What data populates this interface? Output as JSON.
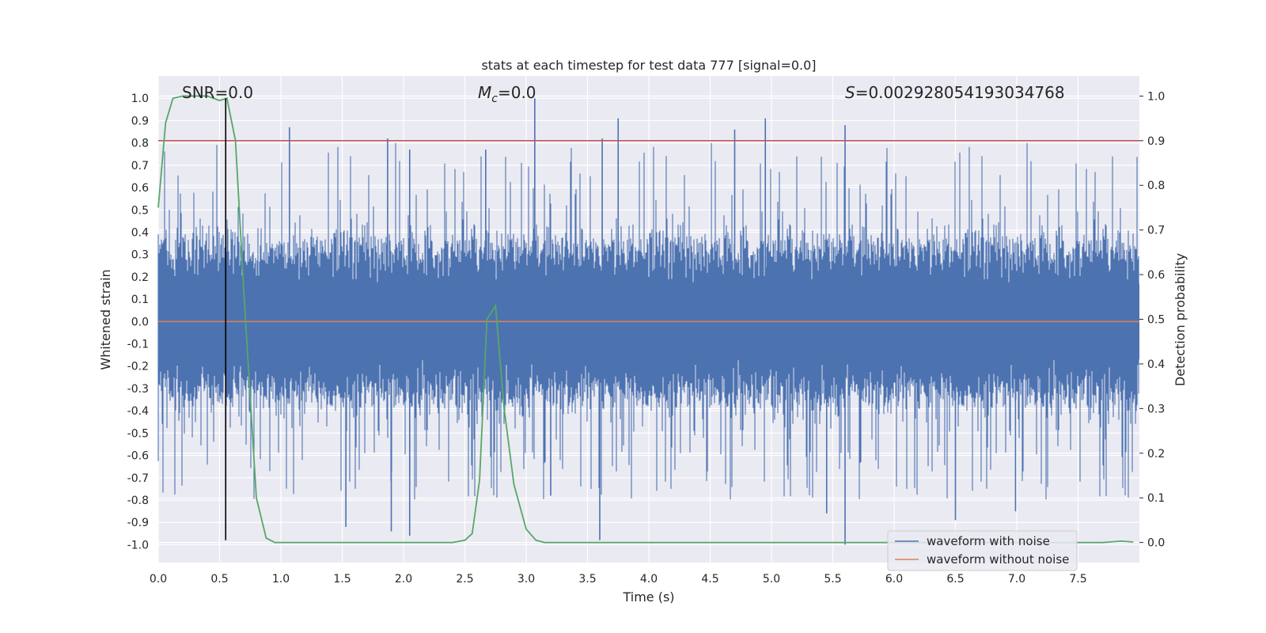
{
  "chart_data": {
    "type": "line",
    "title": "stats at each timestep for test data 777 [signal=0.0]",
    "xlabel": "Time (s)",
    "ylabel": "Whitened strain",
    "y2label": "Detection probability",
    "xlim": [
      0,
      8.0
    ],
    "ylim": [
      -1.08,
      1.1
    ],
    "y2lim": [
      -0.045,
      1.045
    ],
    "x_ticks": [
      "0.0",
      "0.5",
      "1.0",
      "1.5",
      "2.0",
      "2.5",
      "3.0",
      "3.5",
      "4.0",
      "4.5",
      "5.0",
      "5.5",
      "6.0",
      "6.5",
      "7.0",
      "7.5"
    ],
    "y_ticks": [
      "1.0",
      "0.9",
      "0.8",
      "0.7",
      "0.6",
      "0.5",
      "0.4",
      "0.3",
      "0.2",
      "0.1",
      "0.0",
      "-0.1",
      "-0.2",
      "-0.3",
      "-0.4",
      "-0.5",
      "-0.6",
      "-0.7",
      "-0.8",
      "-0.9",
      "-1.0"
    ],
    "y2_ticks": [
      "1.0",
      "0.9",
      "0.8",
      "0.7",
      "0.6",
      "0.5",
      "0.4",
      "0.3",
      "0.2",
      "0.1",
      "0.0"
    ],
    "annotations": {
      "snr": "SNR=0.0",
      "mc_symbol": "M",
      "mc_sub": "c",
      "mc_value": "=0.0",
      "s_symbol": "S",
      "s_value": "=0.002928054193034768"
    },
    "threshold": {
      "y2": 0.9,
      "color": "#c44e52"
    },
    "marker_line": {
      "x": 0.55,
      "color": "#000000"
    },
    "series": [
      {
        "name": "waveform with noise",
        "color": "#4c72b0",
        "sample_rate": 2048,
        "typical_amplitude": 0.3,
        "spikes": [
          [
            1.07,
            0.87
          ],
          [
            1.87,
            0.82
          ],
          [
            3.07,
            1.0
          ],
          [
            3.75,
            0.91
          ],
          [
            4.7,
            0.86
          ],
          [
            4.95,
            0.91
          ],
          [
            5.6,
            0.88
          ],
          [
            3.62,
            0.82
          ],
          [
            2.05,
            0.77
          ],
          [
            2.67,
            0.77
          ],
          [
            3.6,
            -0.98
          ],
          [
            5.6,
            -1.0
          ],
          [
            6.5,
            -0.89
          ],
          [
            6.99,
            -0.85
          ],
          [
            1.9,
            -0.94
          ],
          [
            2.05,
            -0.96
          ],
          [
            1.53,
            -0.92
          ],
          [
            0.55,
            -0.76
          ],
          [
            3.2,
            -0.78
          ],
          [
            5.45,
            -0.86
          ]
        ]
      },
      {
        "name": "waveform without noise",
        "color": "#dd8452",
        "value": 0.0
      },
      {
        "name": "detection probability",
        "color": "#55a868",
        "axis": "y2",
        "x": [
          0.0,
          0.06,
          0.12,
          0.2,
          0.3,
          0.4,
          0.5,
          0.56,
          0.63,
          0.7,
          0.8,
          0.88,
          0.95,
          1.05,
          2.0,
          2.4,
          2.5,
          2.56,
          2.62,
          2.68,
          2.75,
          2.82,
          2.9,
          3.0,
          3.08,
          3.15,
          3.3,
          7.7,
          7.85,
          7.95
        ],
        "values": [
          0.75,
          0.94,
          0.995,
          1.0,
          1.0,
          1.0,
          0.99,
          0.995,
          0.9,
          0.55,
          0.1,
          0.01,
          0.0,
          0.0,
          0.0,
          0.0,
          0.005,
          0.02,
          0.14,
          0.5,
          0.53,
          0.3,
          0.13,
          0.03,
          0.005,
          0.0,
          0.0,
          0.0,
          0.003,
          0.001
        ]
      }
    ],
    "legend": {
      "placement": "lower-right",
      "entries": [
        {
          "label": "waveform with noise",
          "color": "#4c72b0"
        },
        {
          "label": "waveform without noise",
          "color": "#dd8452"
        }
      ]
    },
    "style": {
      "plot_bg": "#eaeaf2",
      "grid": true,
      "grid_color": "#ffffff"
    }
  }
}
